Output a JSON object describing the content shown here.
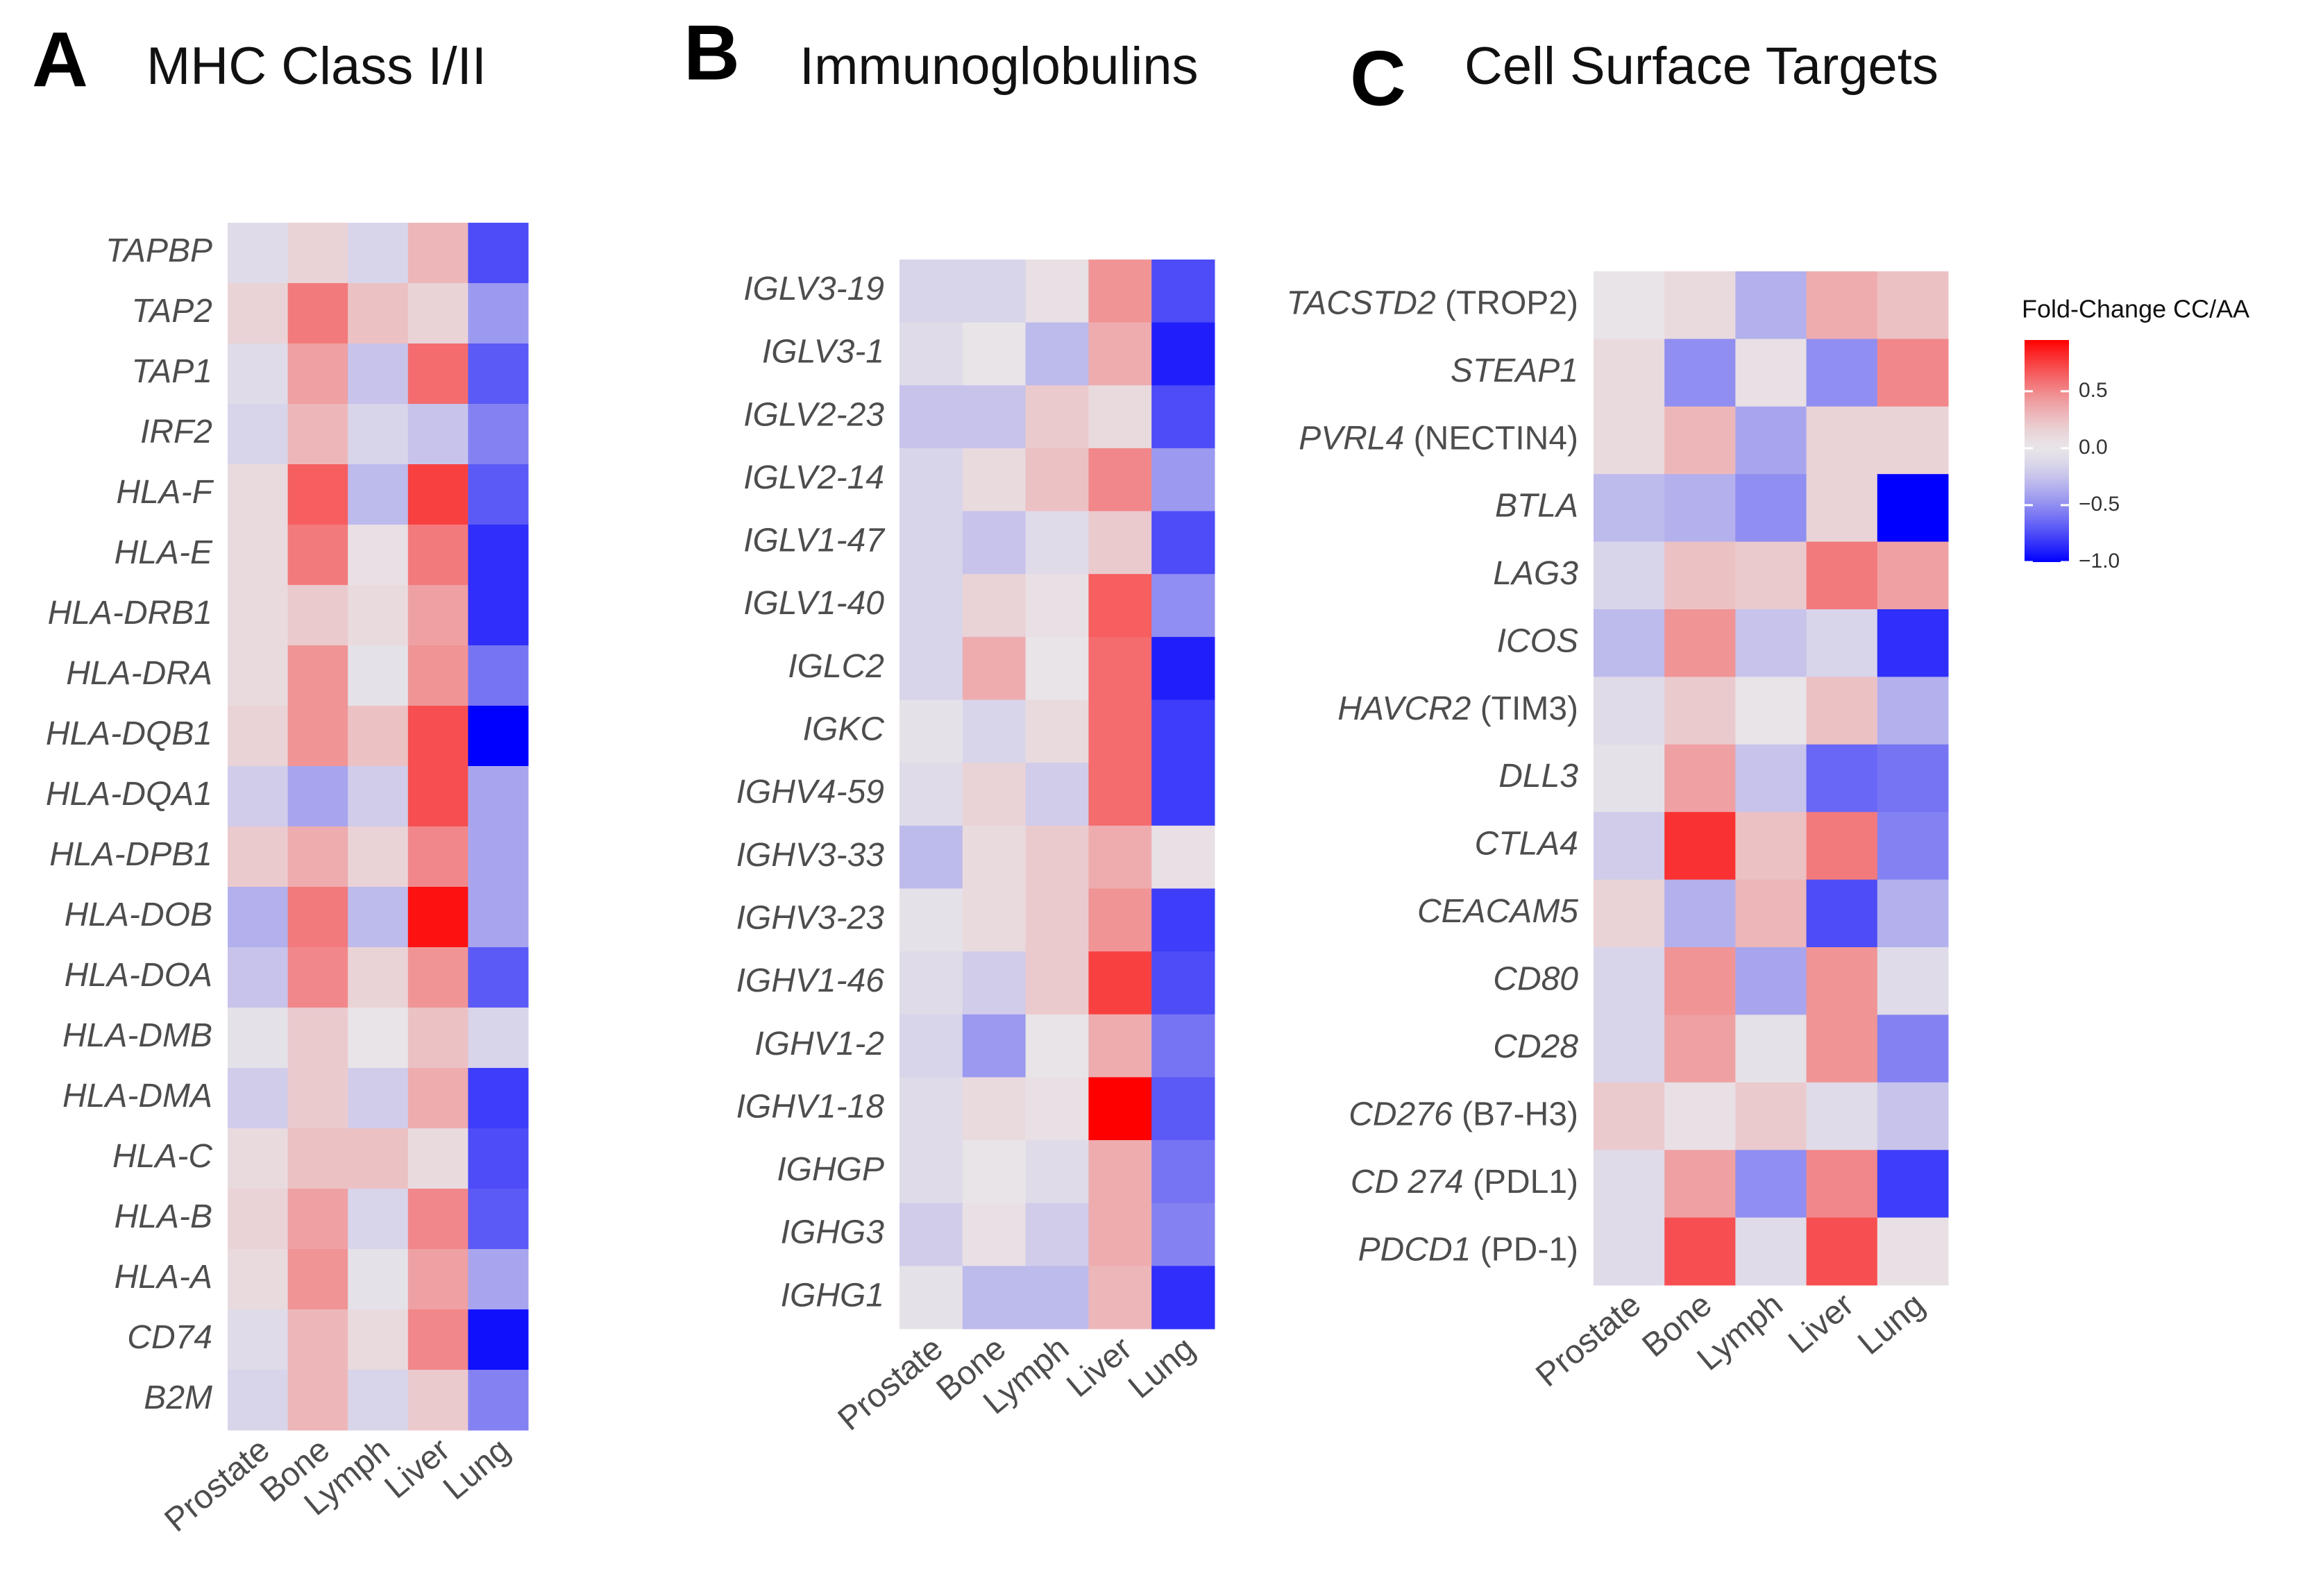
{
  "chart_data": [
    {
      "type": "heatmap",
      "panel_label": "A",
      "title": "MHC Class I/II",
      "categories": [
        "Prostate",
        "Bone",
        "Lymph",
        "Liver",
        "Lung"
      ],
      "rows": [
        "TAPBP",
        "TAP2",
        "TAP1",
        "IRF2",
        "HLA-F",
        "HLA-E",
        "HLA-DRB1",
        "HLA-DRA",
        "HLA-DQB1",
        "HLA-DQA1",
        "HLA-DPB1",
        "HLA-DOB",
        "HLA-DOA",
        "HLA-DMB",
        "HLA-DMA",
        "HLA-C",
        "HLA-B",
        "HLA-A",
        "CD74",
        "B2M"
      ],
      "values": [
        [
          -0.1,
          0.15,
          -0.15,
          0.3,
          -0.75
        ],
        [
          0.15,
          0.55,
          0.25,
          0.15,
          -0.45
        ],
        [
          -0.1,
          0.4,
          -0.25,
          0.6,
          -0.7
        ],
        [
          -0.15,
          0.3,
          -0.15,
          -0.25,
          -0.55
        ],
        [
          0.1,
          0.65,
          -0.3,
          0.75,
          -0.7
        ],
        [
          0.1,
          0.55,
          0.05,
          0.55,
          -0.85
        ],
        [
          0.1,
          0.2,
          0.1,
          0.4,
          -0.85
        ],
        [
          0.1,
          0.45,
          -0.05,
          0.45,
          -0.6
        ],
        [
          0.15,
          0.45,
          0.25,
          0.7,
          -1.0
        ],
        [
          -0.2,
          -0.4,
          -0.2,
          0.7,
          -0.4
        ],
        [
          0.2,
          0.35,
          0.15,
          0.5,
          -0.4
        ],
        [
          -0.35,
          0.55,
          -0.3,
          0.9,
          -0.4
        ],
        [
          -0.25,
          0.5,
          0.15,
          0.45,
          -0.7
        ],
        [
          -0.05,
          0.2,
          0.0,
          0.25,
          -0.15
        ],
        [
          -0.2,
          0.2,
          -0.2,
          0.35,
          -0.8
        ],
        [
          0.1,
          0.25,
          0.25,
          0.1,
          -0.75
        ],
        [
          0.15,
          0.4,
          -0.15,
          0.5,
          -0.7
        ],
        [
          0.1,
          0.45,
          -0.05,
          0.4,
          -0.4
        ],
        [
          -0.1,
          0.3,
          0.1,
          0.5,
          -0.95
        ],
        [
          -0.15,
          0.3,
          -0.15,
          0.2,
          -0.55
        ]
      ],
      "clim": [
        -1.0,
        0.95
      ],
      "colors": [
        "#0000ff",
        "#e8e4e8",
        "#ff0000"
      ]
    },
    {
      "type": "heatmap",
      "panel_label": "B",
      "title": "Immunoglobulins",
      "categories": [
        "Prostate",
        "Bone",
        "Lymph",
        "Liver",
        "Lung"
      ],
      "rows": [
        "IGLV3-19",
        "IGLV3-1",
        "IGLV2-23",
        "IGLV2-14",
        "IGLV1-47",
        "IGLV1-40",
        "IGLC2",
        "IGKC",
        "IGHV4-59",
        "IGHV3-33",
        "IGHV3-23",
        "IGHV1-46",
        "IGHV1-2",
        "IGHV1-18",
        "IGHGP",
        "IGHG3",
        "IGHG1"
      ],
      "values": [
        [
          -0.15,
          -0.15,
          0.05,
          0.45,
          -0.75
        ],
        [
          -0.1,
          0.0,
          -0.3,
          0.35,
          -0.9
        ],
        [
          -0.25,
          -0.25,
          0.2,
          0.1,
          -0.75
        ],
        [
          -0.15,
          0.1,
          0.25,
          0.5,
          -0.45
        ],
        [
          -0.15,
          -0.25,
          -0.1,
          0.2,
          -0.75
        ],
        [
          -0.15,
          0.15,
          0.05,
          0.65,
          -0.5
        ],
        [
          -0.15,
          0.35,
          0.0,
          0.6,
          -0.9
        ],
        [
          -0.05,
          -0.15,
          0.1,
          0.6,
          -0.8
        ],
        [
          -0.1,
          0.15,
          -0.2,
          0.6,
          -0.8
        ],
        [
          -0.3,
          0.1,
          0.2,
          0.35,
          0.05
        ],
        [
          -0.05,
          0.1,
          0.2,
          0.45,
          -0.8
        ],
        [
          -0.1,
          -0.2,
          0.2,
          0.75,
          -0.75
        ],
        [
          -0.15,
          -0.45,
          0.0,
          0.35,
          -0.6
        ],
        [
          -0.1,
          0.1,
          0.05,
          0.95,
          -0.7
        ],
        [
          -0.1,
          0.0,
          -0.1,
          0.35,
          -0.6
        ],
        [
          -0.2,
          0.05,
          -0.2,
          0.35,
          -0.55
        ],
        [
          -0.05,
          -0.3,
          -0.3,
          0.3,
          -0.85
        ]
      ],
      "clim": [
        -1.0,
        0.95
      ],
      "colors": [
        "#0000ff",
        "#e8e4e8",
        "#ff0000"
      ]
    },
    {
      "type": "heatmap",
      "panel_label": "C",
      "title": "Cell Surface Targets",
      "categories": [
        "Prostate",
        "Bone",
        "Lymph",
        "Liver",
        "Lung"
      ],
      "rows": [
        "TACSTD2 (TROP2)",
        "STEAP1",
        "PVRL4 (NECTIN4)",
        "BTLA",
        "LAG3",
        "ICOS",
        "HAVCR2 (TIM3)",
        "DLL3",
        "CTLA4",
        "CEACAM5",
        "CD80",
        "CD28",
        "CD276 (B7-H3)",
        "CD 274 (PDL1)",
        "PDCD1 (PD-1)"
      ],
      "values": [
        [
          0.0,
          0.1,
          -0.35,
          0.35,
          0.25
        ],
        [
          0.1,
          -0.5,
          0.05,
          -0.5,
          0.5
        ],
        [
          0.1,
          0.3,
          -0.4,
          0.15,
          0.15
        ],
        [
          -0.3,
          -0.35,
          -0.5,
          0.15,
          -1.0
        ],
        [
          -0.15,
          0.25,
          0.2,
          0.55,
          0.4
        ],
        [
          -0.3,
          0.45,
          -0.25,
          -0.15,
          -0.85
        ],
        [
          -0.1,
          0.2,
          0.0,
          0.25,
          -0.35
        ],
        [
          -0.05,
          0.4,
          -0.25,
          -0.65,
          -0.6
        ],
        [
          -0.2,
          0.8,
          0.25,
          0.55,
          -0.55
        ],
        [
          0.15,
          -0.35,
          0.3,
          -0.75,
          -0.35
        ],
        [
          -0.15,
          0.45,
          -0.4,
          0.45,
          -0.1
        ],
        [
          -0.15,
          0.4,
          -0.05,
          0.45,
          -0.55
        ],
        [
          0.2,
          0.05,
          0.2,
          -0.1,
          -0.25
        ],
        [
          -0.1,
          0.4,
          -0.5,
          0.5,
          -0.8
        ],
        [
          -0.1,
          0.7,
          -0.1,
          0.7,
          0.05
        ]
      ],
      "clim": [
        -1.0,
        0.95
      ],
      "colors": [
        "#0000ff",
        "#e8e4e8",
        "#ff0000"
      ],
      "legend_title": "Fold-Change CC/AA",
      "cticks": [
        {
          "value": 0.5,
          "label": "0.5"
        },
        {
          "value": 0,
          "label": "0.0"
        },
        {
          "value": -0.5,
          "label": "−0.5"
        },
        {
          "value": -1,
          "label": "−1.0"
        }
      ]
    }
  ]
}
